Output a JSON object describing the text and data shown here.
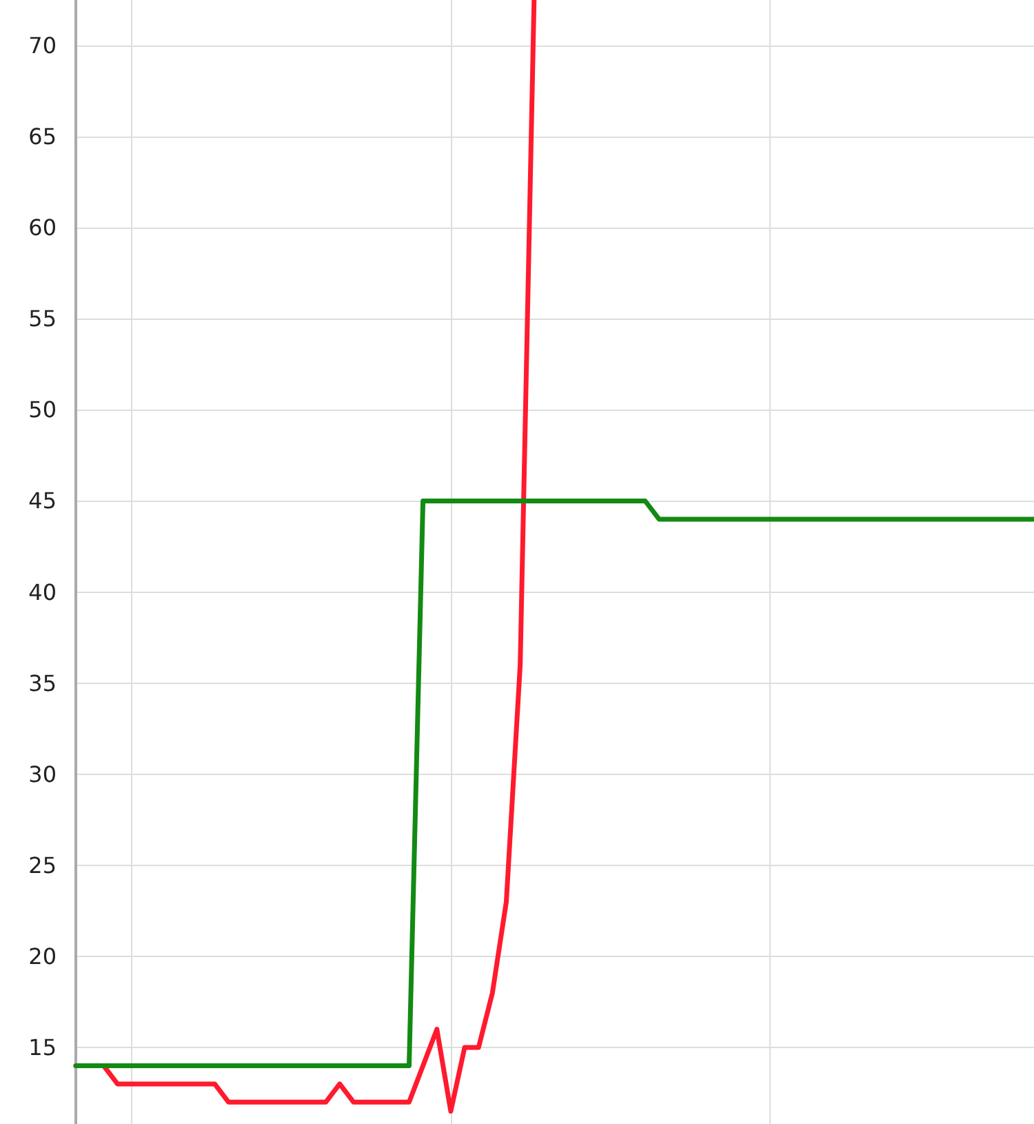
{
  "chart_data": {
    "type": "line",
    "categories": [
      null,
      null,
      null,
      null,
      null,
      null,
      null,
      null,
      null,
      null,
      null,
      null,
      null,
      null,
      null,
      null,
      null,
      null,
      null,
      null,
      null,
      null,
      null,
      null,
      null,
      null,
      null,
      null,
      null,
      null,
      null,
      null,
      null,
      null,
      null,
      null,
      null,
      null,
      null,
      null,
      null,
      null,
      null,
      null,
      null,
      null,
      null,
      null,
      null,
      null,
      null,
      null,
      null,
      null,
      null,
      null,
      null,
      null,
      null,
      null,
      null,
      null,
      null,
      null,
      null,
      null,
      null,
      null,
      null,
      null
    ],
    "series": [
      {
        "color": "#ff1a2e",
        "values": [
          14,
          14,
          14,
          13,
          13,
          13,
          13,
          13,
          13,
          13,
          13,
          12,
          12,
          12,
          12,
          12,
          12,
          12,
          12,
          13,
          12,
          12,
          12,
          12,
          12,
          14,
          16,
          11.5,
          15,
          15,
          18,
          23,
          36,
          72.5,
          null,
          null,
          null,
          null,
          null,
          null,
          null,
          null,
          null,
          null,
          null,
          null,
          null,
          null,
          null,
          null,
          null,
          null,
          null,
          null,
          null,
          null,
          null,
          null,
          null,
          null,
          null,
          null,
          null,
          null,
          null,
          null,
          null,
          null,
          null,
          null
        ]
      },
      {
        "color": "#138a13",
        "values": [
          14,
          14,
          14,
          14,
          14,
          14,
          14,
          14,
          14,
          14,
          14,
          14,
          14,
          14,
          14,
          14,
          14,
          14,
          14,
          14,
          14,
          14,
          14,
          14,
          14,
          45,
          45,
          45,
          45,
          45,
          45,
          45,
          45,
          45,
          45,
          45,
          45,
          45,
          45,
          45,
          45,
          45,
          44,
          44,
          44,
          44,
          44,
          44,
          44,
          44,
          44,
          44,
          44,
          44,
          44,
          44,
          44,
          44,
          44,
          44,
          44,
          44,
          44,
          44,
          44,
          44,
          44,
          44,
          44,
          44
        ]
      }
    ],
    "ylim": [
      10.8,
      72.5
    ],
    "yticks": [
      15,
      20,
      25,
      30,
      35,
      40,
      45,
      50,
      55,
      60,
      65,
      70
    ],
    "grid": true,
    "marker": "none",
    "line_style": "solid"
  }
}
